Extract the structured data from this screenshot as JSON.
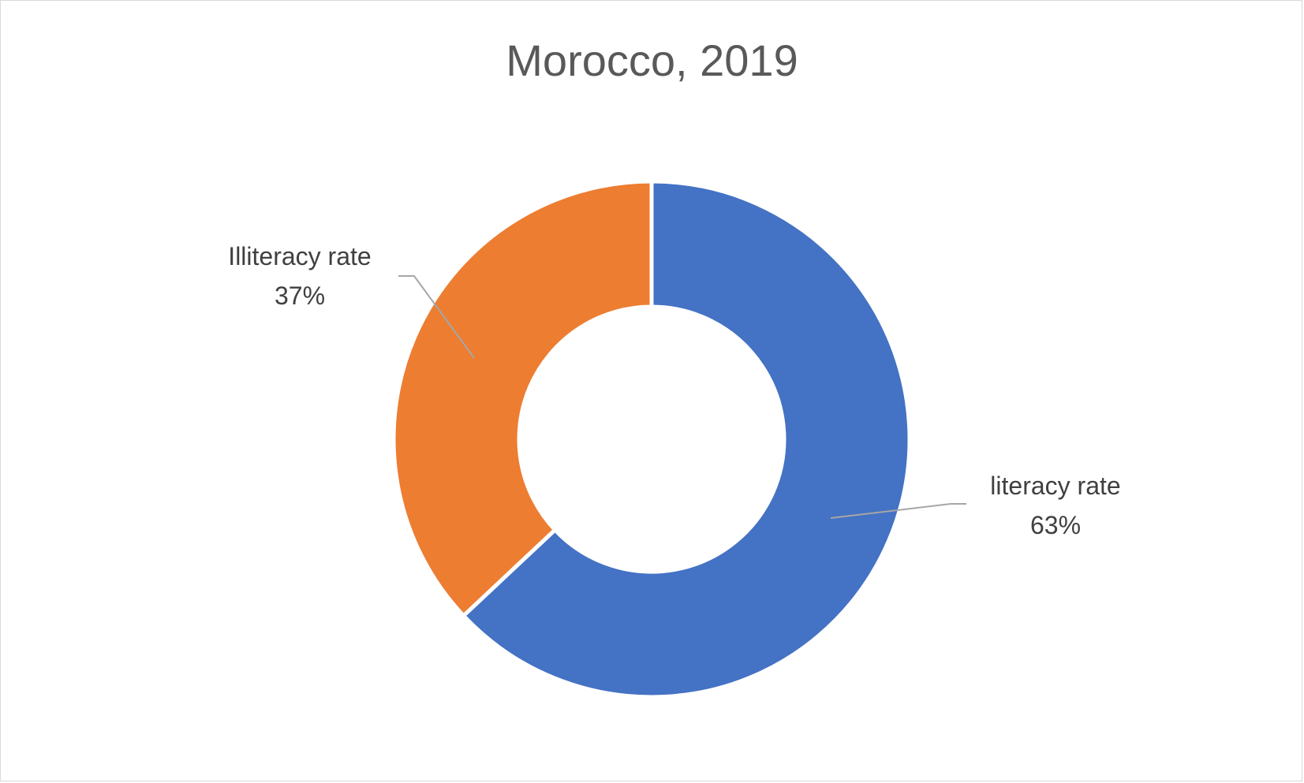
{
  "chart_data": {
    "type": "pie",
    "subtype": "donut",
    "title": "Morocco, 2019",
    "categories": [
      "literacy rate",
      "Illiteracy rate"
    ],
    "values": [
      63,
      37
    ],
    "value_labels": [
      "63%",
      "37%"
    ],
    "colors": [
      "#4472c4",
      "#ed7d31"
    ],
    "legend": "none"
  }
}
